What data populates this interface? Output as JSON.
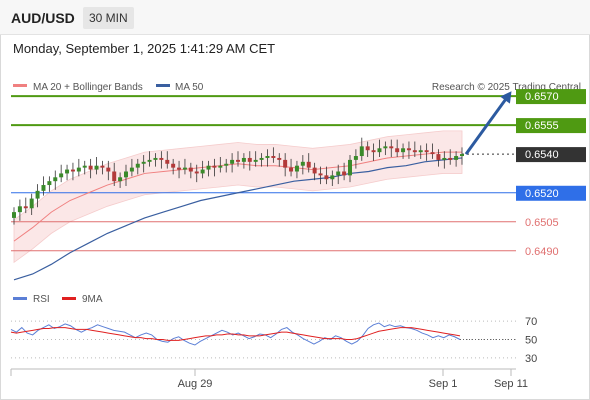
{
  "header": {
    "symbol": "AUD/USD",
    "timeframe": "30 MIN"
  },
  "datetime": "Monday, September 1, 2025 1:41:29 AM CET",
  "credit": "Research © 2025 Trading Central",
  "legend": [
    {
      "label": "MA 20 + Bollinger Bands",
      "color": "#f08080"
    },
    {
      "label": "MA 50",
      "color": "#3a5fa0"
    }
  ],
  "rsi_legend": [
    {
      "label": "RSI",
      "color": "#5b7fd6"
    },
    {
      "label": "9MA",
      "color": "#e02020"
    }
  ],
  "colors": {
    "resistance": "#4f9a12",
    "current": "#333333",
    "pivot": "#2f6fe8",
    "support": "#e07070",
    "arrow": "#2c5aa0",
    "up": "#3a8a2a",
    "down": "#b33a3a"
  },
  "chart_data": [
    {
      "type": "candlestick",
      "title": "AUD/USD",
      "timeframe": "30 MIN",
      "x_ticks": [
        "Aug 29",
        "Sep 1",
        "Sep 11"
      ],
      "ylim": [
        0.6478,
        0.6584
      ],
      "levels": [
        {
          "value": 0.657,
          "label": "0.6570",
          "kind": "resistance"
        },
        {
          "value": 0.6555,
          "label": "0.6555",
          "kind": "resistance"
        },
        {
          "value": 0.654,
          "label": "0.6540",
          "kind": "current"
        },
        {
          "value": 0.652,
          "label": "0.6520",
          "kind": "pivot"
        },
        {
          "value": 0.6505,
          "label": "0.6505",
          "kind": "support"
        },
        {
          "value": 0.649,
          "label": "0.6490",
          "kind": "support"
        }
      ],
      "forecast_target": 0.657,
      "closes": [
        0.651,
        0.6513,
        0.6512,
        0.6517,
        0.6521,
        0.6524,
        0.6526,
        0.6528,
        0.653,
        0.6532,
        0.6531,
        0.6533,
        0.6534,
        0.6532,
        0.6534,
        0.6533,
        0.6531,
        0.6526,
        0.6528,
        0.6531,
        0.6533,
        0.6535,
        0.6536,
        0.6537,
        0.6538,
        0.6537,
        0.6535,
        0.6533,
        0.6532,
        0.6533,
        0.6531,
        0.653,
        0.6532,
        0.6534,
        0.6533,
        0.6534,
        0.6535,
        0.6537,
        0.6536,
        0.6538,
        0.6536,
        0.6537,
        0.6538,
        0.6539,
        0.6538,
        0.6537,
        0.6533,
        0.6531,
        0.6534,
        0.6536,
        0.6533,
        0.653,
        0.6529,
        0.6527,
        0.6529,
        0.6531,
        0.6529,
        0.6537,
        0.6539,
        0.6544,
        0.6542,
        0.6541,
        0.6543,
        0.6544,
        0.6543,
        0.6541,
        0.6543,
        0.6542,
        0.6541,
        0.6542,
        0.6541,
        0.654,
        0.6537,
        0.6538,
        0.6537,
        0.6539,
        0.654
      ],
      "ma50": [
        0.6475,
        0.6478,
        0.6483,
        0.6489,
        0.6494,
        0.6499,
        0.6503,
        0.6507,
        0.651,
        0.6513,
        0.6516,
        0.6518,
        0.652,
        0.6522,
        0.6524,
        0.6526,
        0.6527,
        0.6528,
        0.653,
        0.6531,
        0.6533,
        0.6534,
        0.6536,
        0.6537,
        0.6538
      ],
      "ma20": [
        0.6495,
        0.6502,
        0.651,
        0.6516,
        0.652,
        0.6524,
        0.6527,
        0.653,
        0.6531,
        0.6532,
        0.6533,
        0.6534,
        0.6535,
        0.6534,
        0.6534,
        0.6533,
        0.6532,
        0.6533,
        0.6534,
        0.6536,
        0.6538,
        0.6539,
        0.654,
        0.6541,
        0.6541
      ]
    },
    {
      "type": "line",
      "title": "RSI",
      "ylim": [
        20,
        80
      ],
      "y_ticks": [
        "70",
        "50",
        "30"
      ],
      "series": [
        {
          "name": "RSI",
          "values": [
            61,
            58,
            63,
            57,
            55,
            60,
            63,
            66,
            62,
            64,
            67,
            65,
            61,
            58,
            61,
            63,
            66,
            64,
            62,
            60,
            59,
            58,
            55,
            52,
            55,
            57,
            55,
            50,
            48,
            47,
            51,
            53,
            49,
            46,
            44,
            48,
            51,
            54,
            57,
            60,
            58,
            55,
            57,
            54,
            51,
            53,
            56,
            55,
            52,
            56,
            61,
            63,
            58,
            55,
            51,
            48,
            45,
            48,
            52,
            50,
            54,
            52,
            48,
            45,
            48,
            54,
            62,
            66,
            68,
            64,
            66,
            64,
            65,
            63,
            62,
            60,
            57,
            55,
            52,
            54,
            52,
            55,
            53,
            50
          ]
        },
        {
          "name": "9MA",
          "values": [
            58,
            57,
            58,
            59,
            60,
            61,
            62,
            62,
            63,
            63,
            63,
            62,
            61,
            61,
            61,
            60,
            59,
            58,
            57,
            56,
            55,
            54,
            53,
            52,
            52,
            51,
            51,
            50,
            50,
            49,
            49,
            49,
            50,
            51,
            52,
            53,
            54,
            54,
            55,
            55,
            56,
            56,
            55,
            55,
            54,
            54,
            54,
            55,
            56,
            57,
            58,
            58,
            57,
            56,
            55,
            54,
            53,
            52,
            51,
            51,
            51,
            51,
            50,
            50,
            51,
            53,
            55,
            57,
            59,
            60,
            61,
            62,
            63,
            63,
            63,
            62,
            61,
            60,
            59,
            58,
            57,
            56,
            55,
            54
          ]
        }
      ]
    }
  ]
}
